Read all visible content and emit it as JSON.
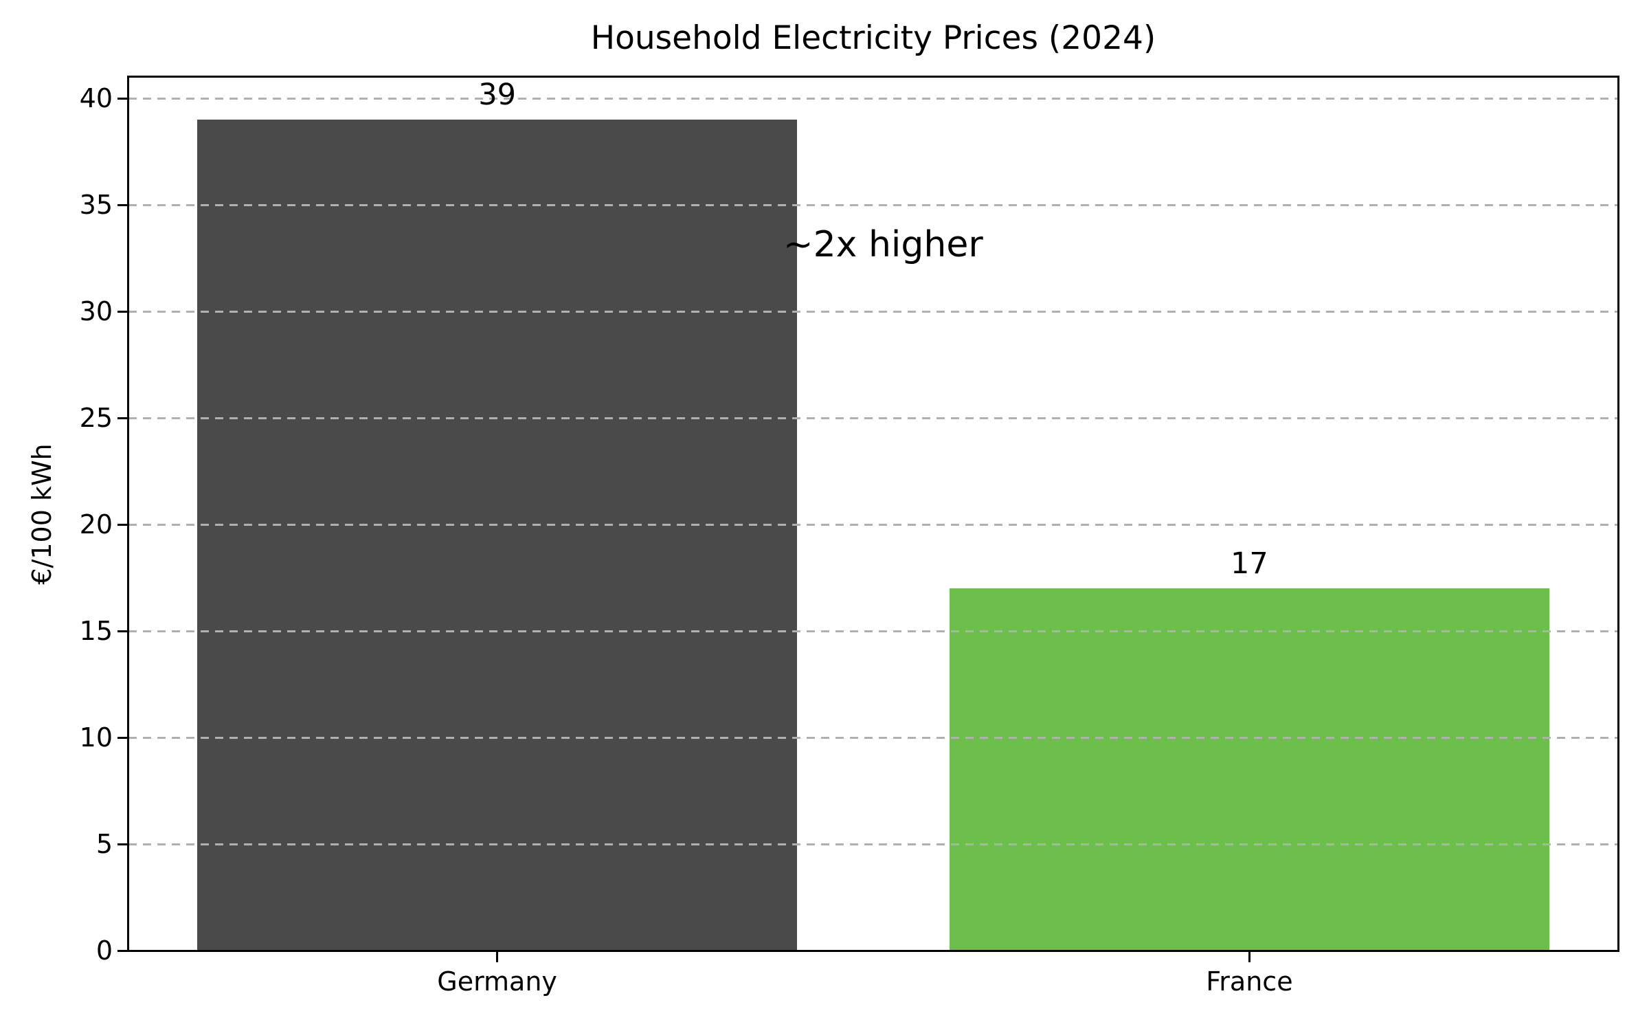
{
  "chart_data": {
    "type": "bar",
    "title": "Household Electricity Prices (2024)",
    "xlabel": "",
    "ylabel": "€/100 kWh",
    "categories": [
      "Germany",
      "France"
    ],
    "values": [
      39,
      17
    ],
    "bar_value_labels": [
      "39",
      "17"
    ],
    "bar_colors": [
      "#4a4a4a",
      "#6cbf4a"
    ],
    "yticks": [
      0,
      5,
      10,
      15,
      20,
      25,
      30,
      35,
      40
    ],
    "ylim": [
      0,
      41
    ],
    "grid": {
      "axis": "y",
      "style": "dashed",
      "color": "#b0b0b0",
      "drawn_over_bars": true
    },
    "legend": "none",
    "annotation": {
      "text": "~2x higher",
      "anchored_to": "right edge of Germany bar",
      "approx_y_value": 33.5
    }
  },
  "colors": {
    "background": "#ffffff",
    "spine": "#000000",
    "text": "#000000",
    "grid": "#b0b0b0",
    "germany_bar": "#4a4a4a",
    "france_bar": "#6cbf4a"
  }
}
